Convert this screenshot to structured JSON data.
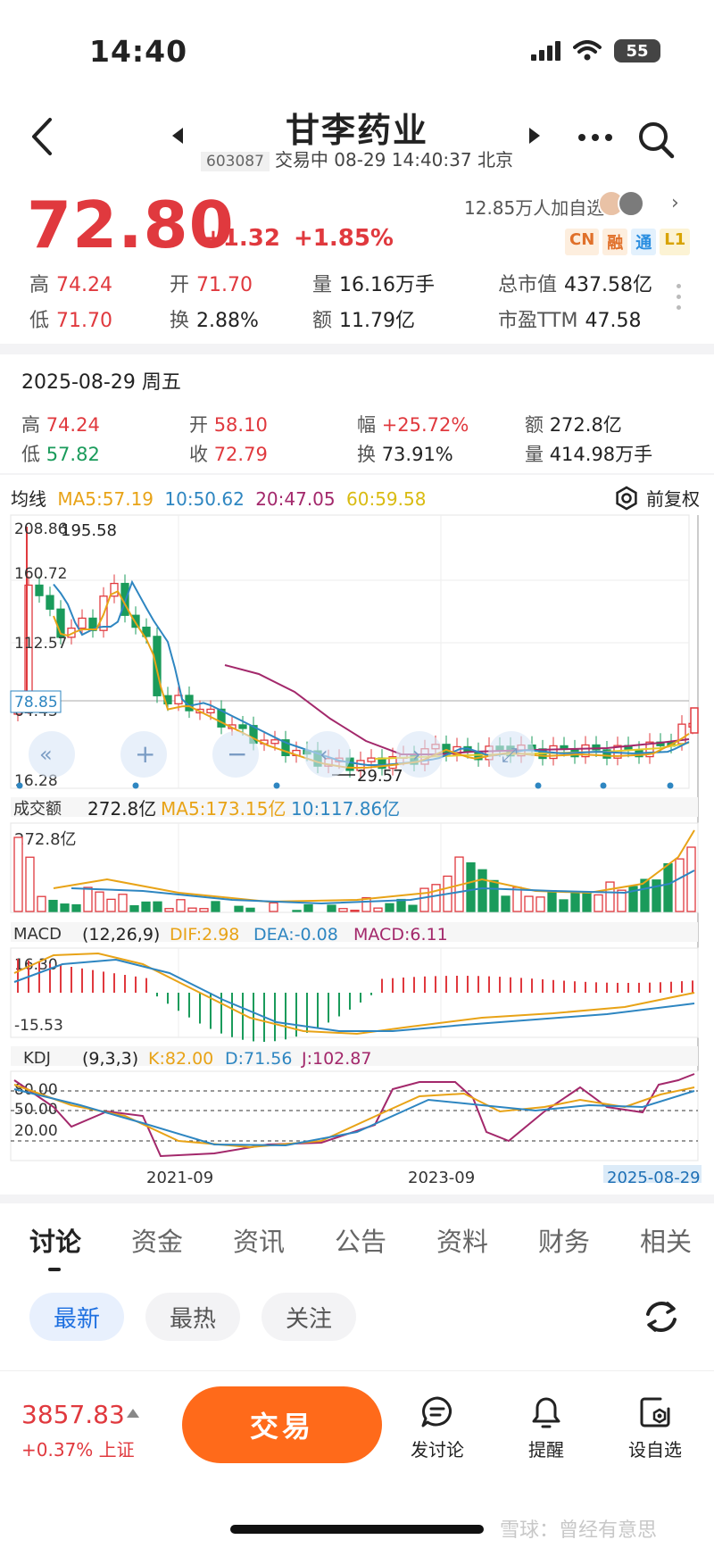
{
  "status_bar": {
    "time": "14:40",
    "battery": "55"
  },
  "header": {
    "title": "甘李药业",
    "code": "603087",
    "status_line": "交易中 08-29 14:40:37 北京"
  },
  "quote": {
    "price": "72.80",
    "change": "+1.32",
    "change_pct": "+1.85%",
    "watchers": "12.85万人加自选",
    "tags": [
      {
        "text": "CN",
        "color": "#e0702a",
        "bg": "#fdeede"
      },
      {
        "text": "融",
        "color": "#e0702a",
        "bg": "#fdeede"
      },
      {
        "text": "通",
        "color": "#2a8ee0",
        "bg": "#e3f1fd"
      },
      {
        "text": "L1",
        "color": "#d8a300",
        "bg": "#fcf3d4"
      }
    ],
    "stats": {
      "high_label": "高",
      "high": "74.24",
      "open_label": "开",
      "open": "71.70",
      "vol_label": "量",
      "vol": "16.16万手",
      "mcap_label": "总市值",
      "mcap": "437.58亿",
      "low_label": "低",
      "low": "71.70",
      "turn_label": "换",
      "turn": "2.88%",
      "amt_label": "额",
      "amt": "11.79亿",
      "pe_label": "市盈TTM",
      "pe": "47.58"
    }
  },
  "day_info": {
    "date": "2025-08-29 周五",
    "high_label": "高",
    "high": "74.24",
    "open_label": "开",
    "open": "58.10",
    "amp_label": "幅",
    "amp": "+25.72%",
    "amt_label": "额",
    "amt": "272.8亿",
    "low_label": "低",
    "low": "57.82",
    "close_label": "收",
    "close": "72.79",
    "turn_label": "换",
    "turn": "73.91%",
    "vol_label": "量",
    "vol": "414.98万手"
  },
  "chart": {
    "ma_legend": {
      "title": "均线",
      "ma5": "MA5:57.19",
      "ma10": "10:50.62",
      "ma20": "20:47.05",
      "ma60": "60:59.58"
    },
    "adjust_label": "前复权",
    "price_axis": [
      "208.86",
      "160.72",
      "112.57",
      "64.43",
      "16.28"
    ],
    "max_label": "195.58",
    "min_label": "29.57",
    "crosshair_price": "78.85",
    "volume_legend": {
      "title": "成交额",
      "value": "272.8亿",
      "ma5": "MA5:173.15亿",
      "ma10": "10:117.86亿"
    },
    "volume_axis_top": "272.8亿",
    "macd_legend": {
      "title": "MACD",
      "params": "(12,26,9)",
      "dif": "DIF:2.98",
      "dea": "DEA:-0.08",
      "macd": "MACD:6.11"
    },
    "macd_axis": [
      "16.30",
      "-15.53"
    ],
    "kdj_legend": {
      "title": "KDJ",
      "params": "(9,3,3)",
      "k": "K:82.00",
      "d": "D:71.56",
      "j": "J:102.87"
    },
    "kdj_axis": [
      "80.00",
      "50.00",
      "20.00"
    ],
    "x_labels": [
      "2021-09",
      "2023-09"
    ],
    "current_date": "2025-08-29",
    "colors": {
      "up": "#e0393e",
      "down": "#1a9b5b",
      "ma5": "#e8a317",
      "ma10": "#2e86c1",
      "ma20": "#a3286b",
      "ma60": "#e5cc2c"
    }
  },
  "tabs": [
    "讨论",
    "资金",
    "资讯",
    "公告",
    "资料",
    "财务",
    "相关"
  ],
  "filters": [
    "最新",
    "最热",
    "关注"
  ],
  "bottom": {
    "index_value": "3857.83",
    "index_change": "+0.37%",
    "index_name": "上证",
    "trade": "交易",
    "discuss": "发讨论",
    "remind": "提醒",
    "watch": "设自选"
  },
  "watermark": "雪球：曾经有意思"
}
